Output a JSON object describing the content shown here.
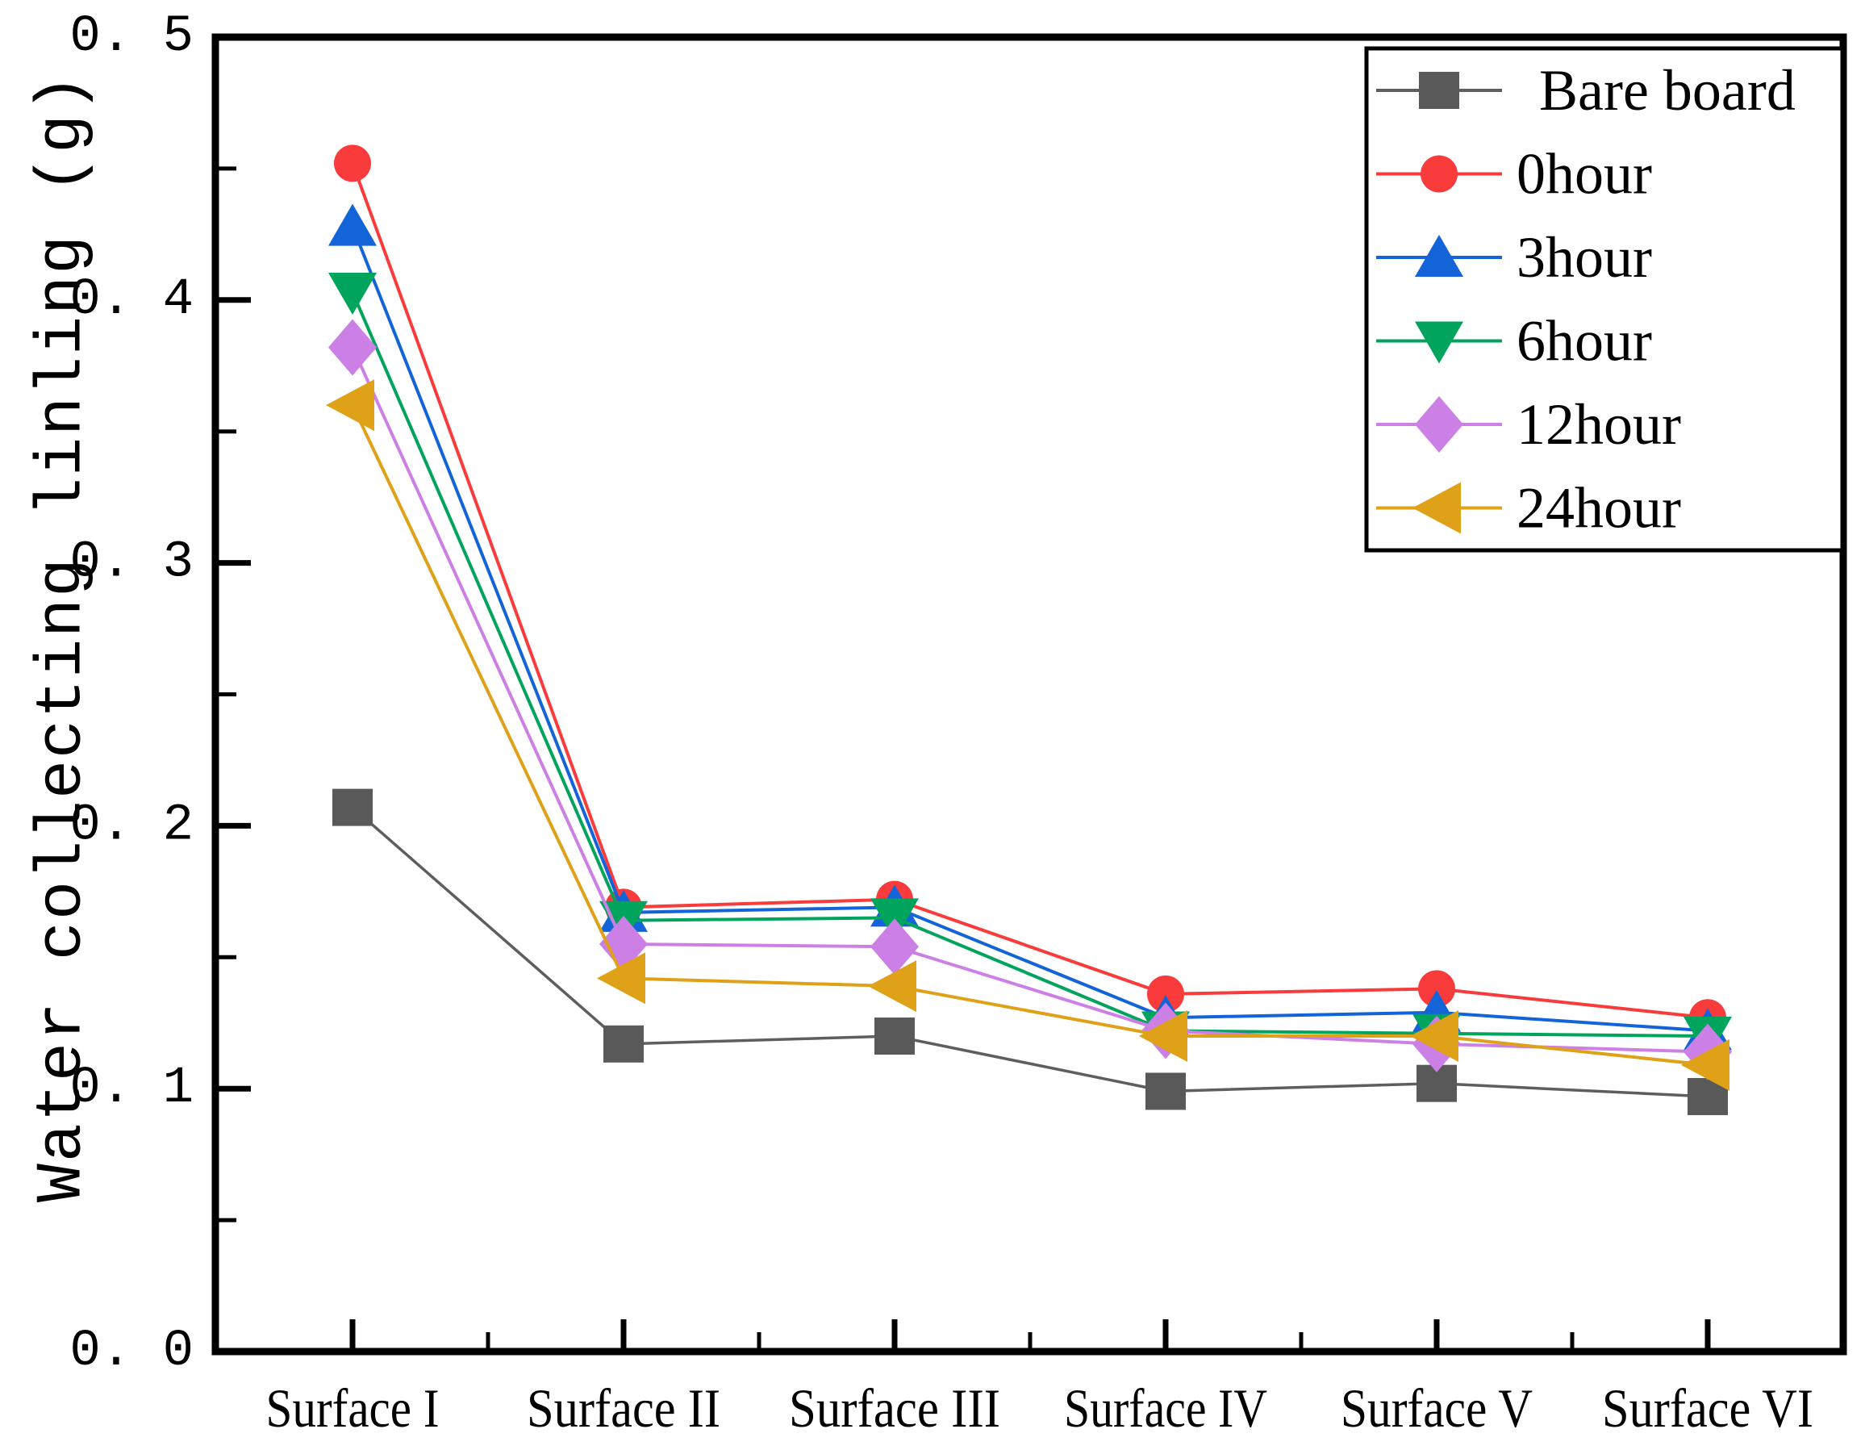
{
  "figure": {
    "background_color": "#ffffff",
    "axis_color": "#000000"
  },
  "y_axis": {
    "tick_labels": [
      "0. 0",
      "0. 1",
      "0. 2",
      "0. 3",
      "0. 4",
      "0. 5"
    ],
    "tick_values": [
      0,
      0.1,
      0.2,
      0.3,
      0.4,
      0.5
    ],
    "minor_tick_step": 0.05
  },
  "chart_data": {
    "type": "line",
    "title": "",
    "xlabel": "",
    "ylabel": "Water collecting linling (g)",
    "ylim": [
      0.0,
      0.5
    ],
    "grid": false,
    "legend_position": "top-right",
    "categories": [
      "Surface I",
      "Surface II",
      "Surface III",
      "Surface IV",
      "Surface V",
      "Surface VI"
    ],
    "series": [
      {
        "name": "Bare board",
        "marker": "square",
        "color": "#595959",
        "line_color": "#5e5e5e",
        "values": [
          0.207,
          0.117,
          0.12,
          0.099,
          0.102,
          0.097
        ]
      },
      {
        "name": "0hour",
        "marker": "circle",
        "color": "#fa3b3b",
        "line_color": "#fa3b3b",
        "values": [
          0.452,
          0.169,
          0.172,
          0.136,
          0.138,
          0.127
        ]
      },
      {
        "name": "3hour",
        "marker": "triangle-up",
        "color": "#1464d9",
        "line_color": "#1464d9",
        "values": [
          0.428,
          0.167,
          0.169,
          0.127,
          0.129,
          0.122
        ]
      },
      {
        "name": "6hour",
        "marker": "triangle-down",
        "color": "#00a45d",
        "line_color": "#00a45d",
        "values": [
          0.403,
          0.164,
          0.165,
          0.122,
          0.121,
          0.12
        ]
      },
      {
        "name": "12hour",
        "marker": "diamond",
        "color": "#cc80e6",
        "line_color": "#cc80e6",
        "values": [
          0.382,
          0.155,
          0.154,
          0.122,
          0.117,
          0.114
        ]
      },
      {
        "name": "24hour",
        "marker": "triangle-left",
        "color": "#dfa118",
        "line_color": "#dfa118",
        "values": [
          0.36,
          0.142,
          0.139,
          0.12,
          0.12,
          0.109
        ]
      }
    ]
  }
}
